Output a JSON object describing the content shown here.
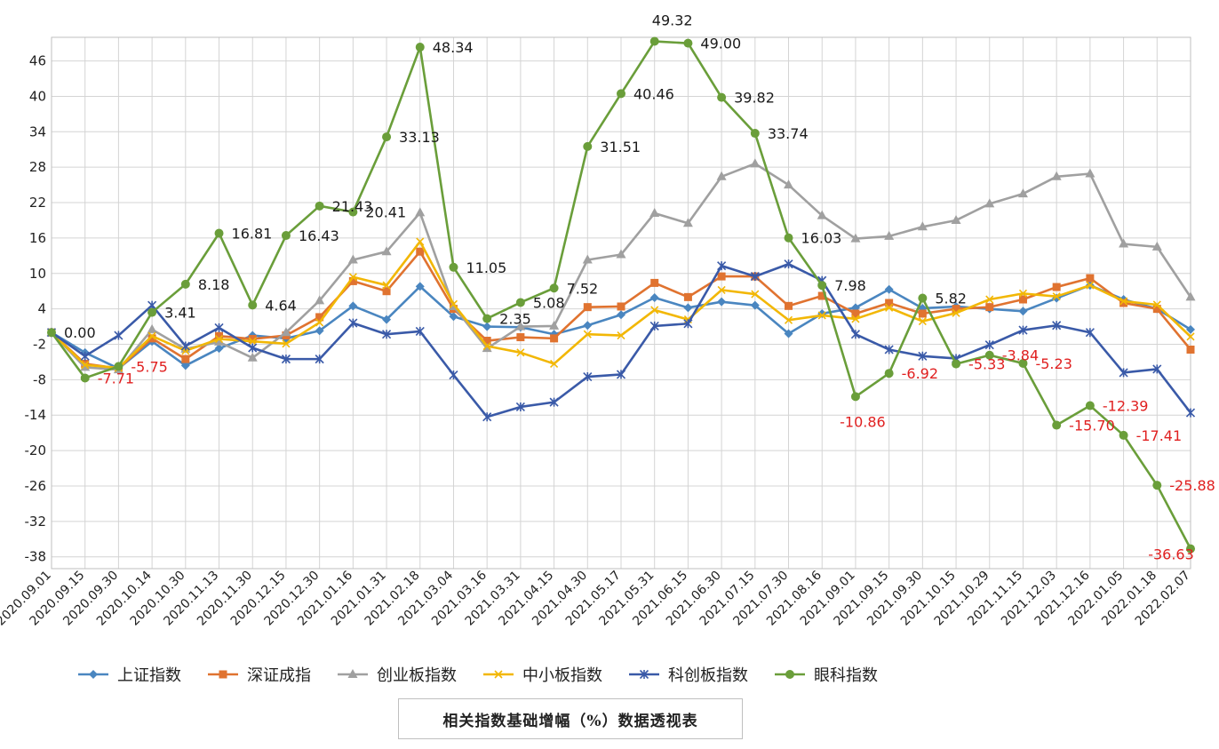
{
  "chart_data": {
    "type": "line",
    "title": "相关指数基础增幅（%）数据透视表",
    "xlabel": "",
    "ylabel": "",
    "ylim": [
      -38,
      50
    ],
    "yticks": [
      46,
      40,
      34,
      28,
      22,
      16,
      10,
      4,
      -2,
      -8,
      -14,
      -20,
      -26,
      -32,
      -38
    ],
    "grid": "on",
    "legend_position": "bottom",
    "x": [
      "2020.09.01",
      "2020.09.15",
      "2020.09.30",
      "2020.10.14",
      "2020.10.30",
      "2020.11.13",
      "2020.11.30",
      "2020.12.15",
      "2020.12.30",
      "2021.01.16",
      "2021.01.31",
      "2021.02.18",
      "2021.03.04",
      "2021.03.16",
      "2021.03.31",
      "2021.04.15",
      "2021.04.30",
      "2021.05.17",
      "2021.05.31",
      "2021.06.15",
      "2021.06.30",
      "2021.07.15",
      "2021.07.30",
      "2021.08.16",
      "2021.09.01",
      "2021.09.15",
      "2021.09.30",
      "2021.10.15",
      "2021.10.29",
      "2021.11.15",
      "2021.12.03",
      "2021.12.16",
      "2022.01.05",
      "2022.01.18",
      "2022.02.07"
    ],
    "series": [
      {
        "name": "上证指数",
        "color": "#4a86c0",
        "marker": "diamond",
        "values": [
          0.0,
          -3.4,
          -6.1,
          -1.5,
          -5.6,
          -2.7,
          -0.5,
          -1.0,
          0.3,
          4.5,
          2.2,
          7.8,
          2.7,
          1.0,
          0.9,
          -0.3,
          1.2,
          3.0,
          5.9,
          4.2,
          5.2,
          4.6,
          -0.2,
          3.2,
          4.2,
          7.3,
          4.1,
          4.4,
          4.0,
          3.6,
          5.8,
          8.0,
          5.6,
          4.0,
          0.5
        ]
      },
      {
        "name": "深证成指",
        "color": "#e07330",
        "marker": "square",
        "values": [
          0.0,
          -5.3,
          -6.1,
          -1.0,
          -4.5,
          -0.6,
          -1.1,
          -0.5,
          2.6,
          8.7,
          7.0,
          13.7,
          4.0,
          -1.4,
          -0.8,
          -1.0,
          4.3,
          4.4,
          8.4,
          6.0,
          9.5,
          9.5,
          4.5,
          6.2,
          3.2,
          5.0,
          3.2,
          4.0,
          4.3,
          5.6,
          7.7,
          9.2,
          5.0,
          4.0,
          -2.9
        ]
      },
      {
        "name": "创业板指数",
        "color": "#a0a0a0",
        "marker": "triangle",
        "values": [
          0.0,
          -5.9,
          -6.3,
          0.5,
          -2.8,
          -1.6,
          -4.3,
          0.0,
          5.4,
          12.3,
          13.7,
          20.3,
          4.4,
          -2.7,
          1.0,
          1.1,
          12.3,
          13.2,
          20.2,
          18.5,
          26.4,
          28.6,
          25.0,
          19.8,
          15.9,
          16.3,
          17.9,
          19.0,
          21.8,
          23.5,
          26.4,
          26.9,
          15.0,
          14.5,
          6.0
        ]
      },
      {
        "name": "中小板指数",
        "color": "#f2b705",
        "marker": "x",
        "values": [
          0.0,
          -5.5,
          -6.0,
          -0.6,
          -3.1,
          -1.1,
          -1.5,
          -1.9,
          1.7,
          9.4,
          8.0,
          15.4,
          4.8,
          -2.3,
          -3.4,
          -5.3,
          -0.3,
          -0.5,
          3.8,
          2.2,
          7.2,
          6.5,
          2.1,
          2.9,
          2.3,
          4.2,
          1.9,
          3.3,
          5.6,
          6.6,
          6.1,
          8.0,
          5.3,
          4.7,
          -0.7
        ]
      },
      {
        "name": "科创板指数",
        "color": "#3a5aa8",
        "marker": "star",
        "values": [
          0.0,
          -4.0,
          -0.5,
          4.6,
          -2.3,
          0.8,
          -2.6,
          -4.5,
          -4.5,
          1.6,
          -0.3,
          0.2,
          -7.2,
          -14.3,
          -12.6,
          -11.8,
          -7.5,
          -7.1,
          1.1,
          1.5,
          11.3,
          9.5,
          11.6,
          8.8,
          -0.3,
          -2.9,
          -4.0,
          -4.4,
          -2.1,
          0.4,
          1.2,
          0.0,
          -6.8,
          -6.2,
          -13.6
        ]
      },
      {
        "name": "眼科指数",
        "color": "#6a9e3a",
        "marker": "circle",
        "values": [
          0.0,
          -7.71,
          -5.75,
          3.41,
          8.18,
          16.81,
          4.64,
          16.43,
          21.43,
          20.41,
          33.13,
          48.34,
          11.05,
          2.35,
          5.08,
          7.52,
          31.51,
          40.46,
          49.32,
          49.0,
          39.82,
          33.74,
          16.03,
          7.98,
          -10.86,
          -6.92,
          5.82,
          -5.33,
          -3.84,
          -5.23,
          -15.7,
          -12.39,
          -17.41,
          -25.88,
          -36.63
        ]
      }
    ],
    "data_labels": [
      {
        "i": 0,
        "text": "0.00",
        "color": "#1a1a1a"
      },
      {
        "i": 1,
        "text": "-7.71",
        "color": "#e02020"
      },
      {
        "i": 2,
        "text": "-5.75",
        "color": "#e02020"
      },
      {
        "i": 3,
        "text": "3.41",
        "color": "#1a1a1a"
      },
      {
        "i": 4,
        "text": "8.18",
        "color": "#1a1a1a"
      },
      {
        "i": 5,
        "text": "16.81",
        "color": "#1a1a1a"
      },
      {
        "i": 6,
        "text": "4.64",
        "color": "#1a1a1a"
      },
      {
        "i": 7,
        "text": "16.43",
        "color": "#1a1a1a"
      },
      {
        "i": 8,
        "text": "21.43",
        "color": "#1a1a1a"
      },
      {
        "i": 9,
        "text": "20.41",
        "color": "#1a1a1a"
      },
      {
        "i": 10,
        "text": "33.13",
        "color": "#1a1a1a"
      },
      {
        "i": 11,
        "text": "48.34",
        "color": "#1a1a1a"
      },
      {
        "i": 12,
        "text": "11.05",
        "color": "#1a1a1a"
      },
      {
        "i": 13,
        "text": "2.35",
        "color": "#1a1a1a"
      },
      {
        "i": 14,
        "text": "5.08",
        "color": "#1a1a1a"
      },
      {
        "i": 15,
        "text": "7.52",
        "color": "#1a1a1a"
      },
      {
        "i": 16,
        "text": "31.51",
        "color": "#1a1a1a"
      },
      {
        "i": 17,
        "text": "40.46",
        "color": "#1a1a1a"
      },
      {
        "i": 18,
        "text": "49.32",
        "color": "#1a1a1a"
      },
      {
        "i": 19,
        "text": "49.00",
        "color": "#1a1a1a"
      },
      {
        "i": 20,
        "text": "39.82",
        "color": "#1a1a1a"
      },
      {
        "i": 21,
        "text": "33.74",
        "color": "#1a1a1a"
      },
      {
        "i": 22,
        "text": "16.03",
        "color": "#1a1a1a"
      },
      {
        "i": 23,
        "text": "7.98",
        "color": "#1a1a1a"
      },
      {
        "i": 24,
        "text": "-10.86",
        "color": "#e02020"
      },
      {
        "i": 25,
        "text": "-6.92",
        "color": "#e02020"
      },
      {
        "i": 26,
        "text": "5.82",
        "color": "#1a1a1a"
      },
      {
        "i": 27,
        "text": "-5.33",
        "color": "#e02020"
      },
      {
        "i": 28,
        "text": "-3.84",
        "color": "#e02020"
      },
      {
        "i": 29,
        "text": "-5.23",
        "color": "#e02020"
      },
      {
        "i": 30,
        "text": "-15.70",
        "color": "#e02020"
      },
      {
        "i": 31,
        "text": "-12.39",
        "color": "#e02020"
      },
      {
        "i": 32,
        "text": "-17.41",
        "color": "#e02020"
      },
      {
        "i": 33,
        "text": "-25.88",
        "color": "#e02020"
      },
      {
        "i": 34,
        "text": "-36.63",
        "color": "#e02020"
      }
    ]
  }
}
